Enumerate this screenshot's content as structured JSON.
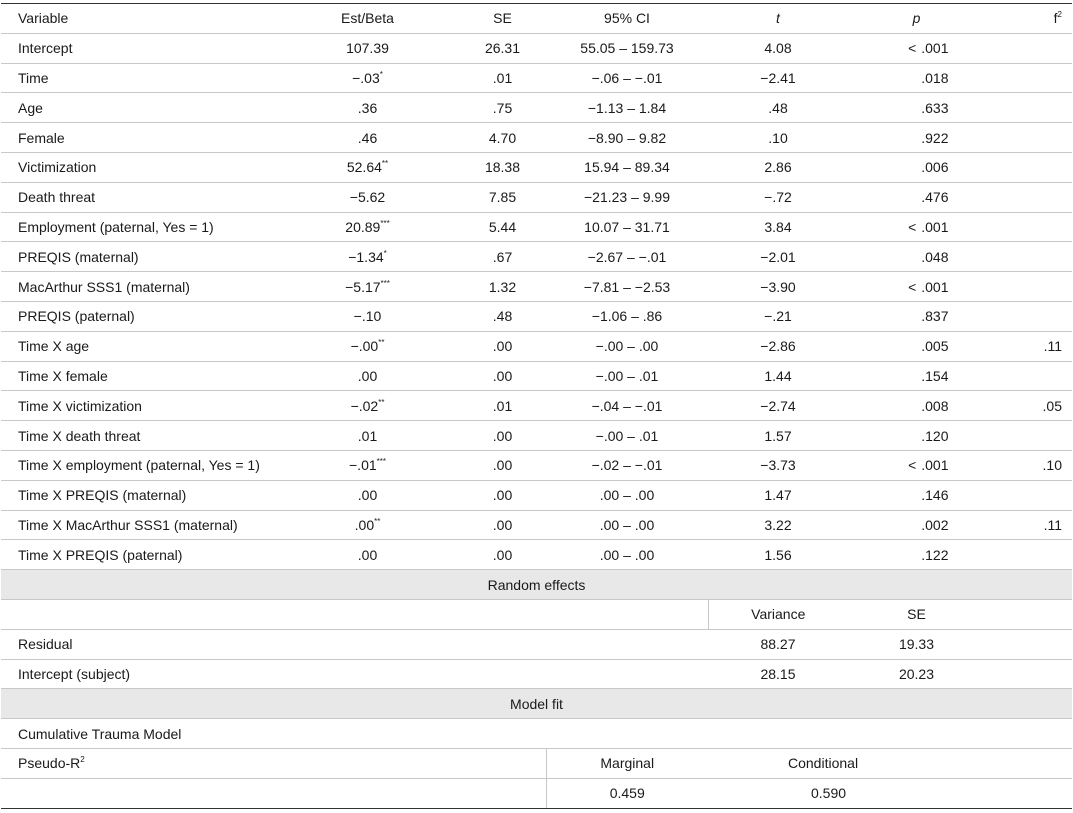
{
  "headers": [
    "Variable",
    "Est/Beta",
    "SE",
    "95% CI",
    "t",
    "p",
    "f",
    "2"
  ],
  "rows": [
    {
      "var": "Intercept",
      "est": "107.39",
      "sig": "",
      "se": "26.31",
      "ci": "55.05 – 159.73",
      "t": "4.08",
      "p_pre": "<",
      "p": ".001",
      "f2": ""
    },
    {
      "var": "Time",
      "est": "−.03",
      "sig": "*",
      "se": ".01",
      "ci": "−.06 – −.01",
      "t": "−2.41",
      "p_pre": "",
      "p": ".018",
      "f2": ""
    },
    {
      "var": "Age",
      "est": ".36",
      "sig": "",
      "se": ".75",
      "ci": "−1.13 – 1.84",
      "t": ".48",
      "p_pre": "",
      "p": ".633",
      "f2": ""
    },
    {
      "var": "Female",
      "est": ".46",
      "sig": "",
      "se": "4.70",
      "ci": "−8.90 – 9.82",
      "t": ".10",
      "p_pre": "",
      "p": ".922",
      "f2": ""
    },
    {
      "var": "Victimization",
      "est": "52.64",
      "sig": "**",
      "se": "18.38",
      "ci": "15.94 – 89.34",
      "t": "2.86",
      "p_pre": "",
      "p": ".006",
      "f2": ""
    },
    {
      "var": "Death threat",
      "est": "−5.62",
      "sig": "",
      "se": "7.85",
      "ci": "−21.23 – 9.99",
      "t": "−.72",
      "p_pre": "",
      "p": ".476",
      "f2": ""
    },
    {
      "var": "Employment (paternal, Yes = 1)",
      "est": "20.89",
      "sig": "***",
      "se": "5.44",
      "ci": "10.07 – 31.71",
      "t": "3.84",
      "p_pre": "<",
      "p": ".001",
      "f2": ""
    },
    {
      "var": "PREQIS (maternal)",
      "est": "−1.34",
      "sig": "*",
      "se": ".67",
      "ci": "−2.67 – −.01",
      "t": "−2.01",
      "p_pre": "",
      "p": ".048",
      "f2": ""
    },
    {
      "var": "MacArthur SSS1 (maternal)",
      "est": "−5.17",
      "sig": "***",
      "se": "1.32",
      "ci": "−7.81 – −2.53",
      "t": "−3.90",
      "p_pre": "<",
      "p": ".001",
      "f2": ""
    },
    {
      "var": "PREQIS (paternal)",
      "est": "−.10",
      "sig": "",
      "se": ".48",
      "ci": "−1.06 – .86",
      "t": "−.21",
      "p_pre": "",
      "p": ".837",
      "f2": ""
    },
    {
      "var": "Time X age",
      "est": "−.00",
      "sig": "**",
      "se": ".00",
      "ci": "−.00 – .00",
      "t": "−2.86",
      "p_pre": "",
      "p": ".005",
      "f2": ".11"
    },
    {
      "var": "Time X female",
      "est": ".00",
      "sig": "",
      "se": ".00",
      "ci": "−.00 – .01",
      "t": "1.44",
      "p_pre": "",
      "p": ".154",
      "f2": ""
    },
    {
      "var": "Time X victimization",
      "est": "−.02",
      "sig": "**",
      "se": ".01",
      "ci": "−.04 – −.01",
      "t": "−2.74",
      "p_pre": "",
      "p": ".008",
      "f2": ".05"
    },
    {
      "var": "Time X death threat",
      "est": ".01",
      "sig": "",
      "se": ".00",
      "ci": "−.00 – .01",
      "t": "1.57",
      "p_pre": "",
      "p": ".120",
      "f2": ""
    },
    {
      "var": "Time X employment (paternal, Yes = 1)",
      "est": "−.01",
      "sig": "***",
      "se": ".00",
      "ci": "−.02 – −.01",
      "t": "−3.73",
      "p_pre": "<",
      "p": ".001",
      "f2": ".10"
    },
    {
      "var": "Time X PREQIS (maternal)",
      "est": ".00",
      "sig": "",
      "se": ".00",
      "ci": ".00 – .00",
      "t": "1.47",
      "p_pre": "",
      "p": ".146",
      "f2": ""
    },
    {
      "var": "Time X MacArthur SSS1 (maternal)",
      "est": ".00",
      "sig": "**",
      "se": ".00",
      "ci": ".00 – .00",
      "t": "3.22",
      "p_pre": "",
      "p": ".002",
      "f2": ".11"
    },
    {
      "var": "Time X PREQIS (paternal)",
      "est": ".00",
      "sig": "",
      "se": ".00",
      "ci": ".00 – .00",
      "t": "1.56",
      "p_pre": "",
      "p": ".122",
      "f2": ""
    }
  ],
  "random_effects": {
    "title": "Random effects",
    "col_variance": "Variance",
    "col_se": "SE",
    "rows": [
      {
        "label": "Residual",
        "variance": "88.27",
        "se": "19.33"
      },
      {
        "label": "Intercept (subject)",
        "variance": "28.15",
        "se": "20.23"
      }
    ]
  },
  "model_fit": {
    "title": "Model fit",
    "model_name": "Cumulative Trauma Model",
    "pseudo_label": "Pseudo-R",
    "pseudo_sup": "2",
    "marginal_label": "Marginal",
    "conditional_label": "Conditional",
    "marginal_value": "0.459",
    "conditional_value": "0.590"
  }
}
